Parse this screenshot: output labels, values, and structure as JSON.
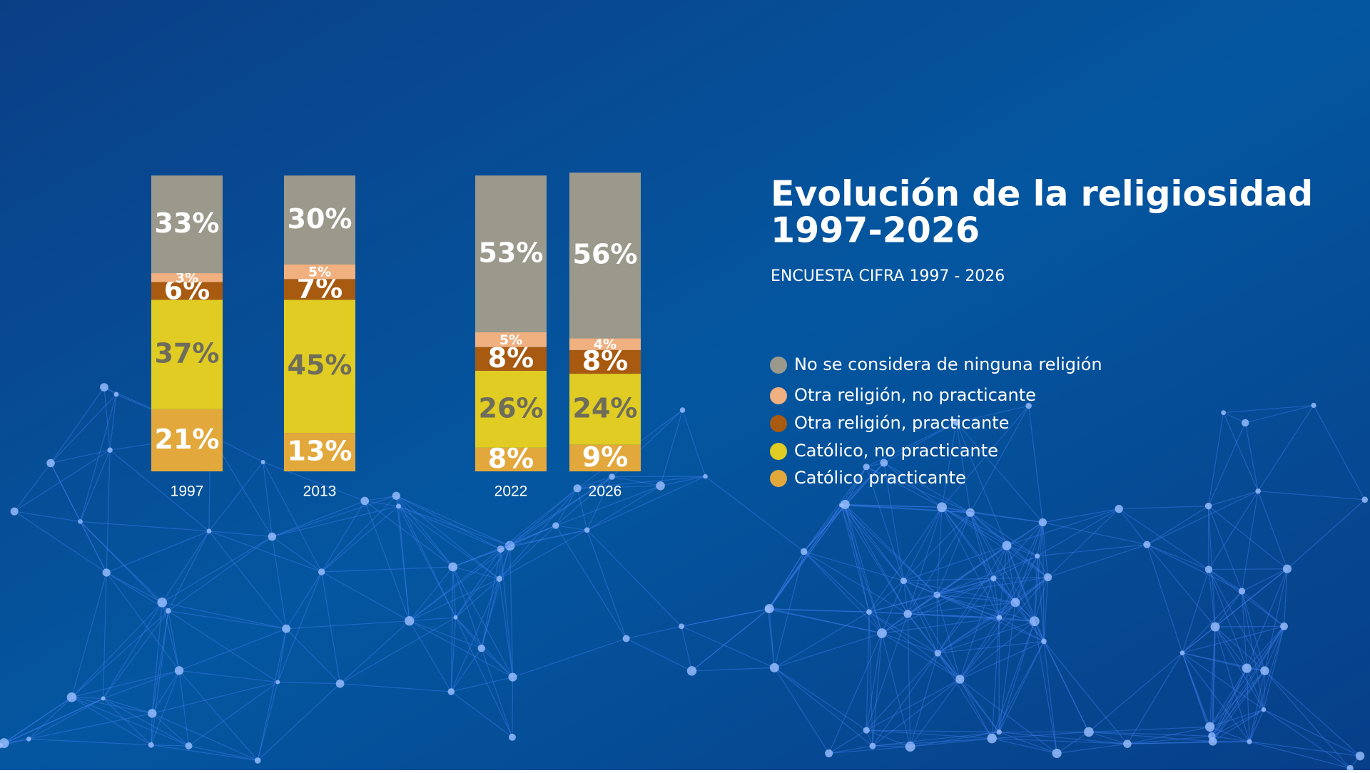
{
  "chart_data": {
    "type": "stacked_bar",
    "title": "Evolución de la religiosidad",
    "title_line2": "1997-2026",
    "subtitle": "ENCUESTA CIFRA 1997 - 2026",
    "categories": [
      "1997",
      "2013",
      "2022",
      "2026"
    ],
    "series": [
      {
        "name": "No se considera de ninguna religión",
        "color": "#9a998c",
        "values": [
          33,
          30,
          53,
          56
        ],
        "value_labels": [
          "33%",
          "30%",
          "53%",
          "56%"
        ]
      },
      {
        "name": "Otra religión, no practicante",
        "color": "#f0b080",
        "values": [
          3,
          5,
          5,
          4
        ],
        "value_labels": [
          "3%",
          "5%",
          "5%",
          "4%"
        ]
      },
      {
        "name": "Otra religión, practicante",
        "color": "#a85a10",
        "values": [
          6,
          7,
          8,
          8
        ],
        "value_labels": [
          "6%",
          "7%",
          "8%",
          "8%"
        ]
      },
      {
        "name": "Católico, no practicante",
        "color": "#e0cc22",
        "values": [
          37,
          45,
          26,
          24
        ],
        "value_labels": [
          "37%",
          "45%",
          "26%",
          "24%"
        ]
      },
      {
        "name": "Católico practicante",
        "color": "#e2a83c",
        "values": [
          21,
          13,
          8,
          9
        ],
        "value_labels": [
          "21%",
          "13%",
          "8%",
          "9%"
        ]
      }
    ]
  }
}
